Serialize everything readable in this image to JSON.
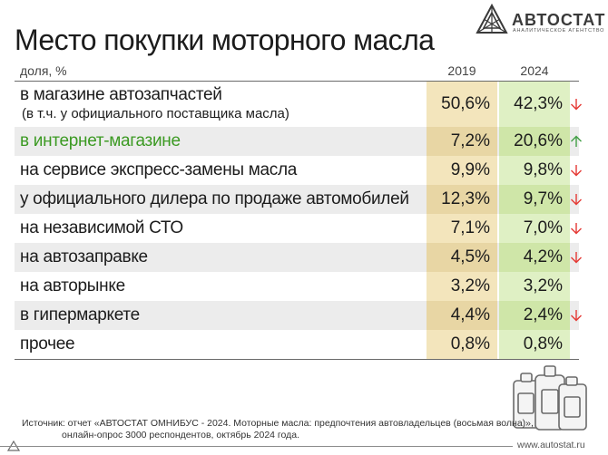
{
  "brand": {
    "name": "АВТОСТАТ",
    "tagline": "АНАЛИТИЧЕСКОЕ АГЕНТСТВО",
    "website": "www.autostat.ru"
  },
  "chart_data": {
    "type": "table",
    "title": "Место покупки моторного масла",
    "unit_label": "доля, %",
    "columns": [
      "2019",
      "2024"
    ],
    "rows": [
      {
        "label": "в магазине автозапчастей",
        "sublabel": "(в т.ч. у официального поставщика масла)",
        "v2019": "50,6%",
        "v2024": "42,3%",
        "value_2019": 50.6,
        "value_2024": 42.3,
        "trend": "down",
        "highlight": false
      },
      {
        "label": "в интернет-магазине",
        "v2019": "7,2%",
        "v2024": "20,6%",
        "value_2019": 7.2,
        "value_2024": 20.6,
        "trend": "up",
        "highlight": true
      },
      {
        "label": "на сервисе экспресс-замены масла",
        "v2019": "9,9%",
        "v2024": "9,8%",
        "value_2019": 9.9,
        "value_2024": 9.8,
        "trend": "down",
        "highlight": false
      },
      {
        "label": "у официального дилера по продаже автомобилей",
        "v2019": "12,3%",
        "v2024": "9,7%",
        "value_2019": 12.3,
        "value_2024": 9.7,
        "trend": "down",
        "highlight": false
      },
      {
        "label": "на независимой СТО",
        "v2019": "7,1%",
        "v2024": "7,0%",
        "value_2019": 7.1,
        "value_2024": 7.0,
        "trend": "down",
        "highlight": false
      },
      {
        "label": "на автозаправке",
        "v2019": "4,5%",
        "v2024": "4,2%",
        "value_2019": 4.5,
        "value_2024": 4.2,
        "trend": "down",
        "highlight": false
      },
      {
        "label": "на авторынке",
        "v2019": "3,2%",
        "v2024": "3,2%",
        "value_2019": 3.2,
        "value_2024": 3.2,
        "trend": "none",
        "highlight": false
      },
      {
        "label": "в гипермаркете",
        "v2019": "4,4%",
        "v2024": "2,4%",
        "value_2019": 4.4,
        "value_2024": 2.4,
        "trend": "down",
        "highlight": false
      },
      {
        "label": "прочее",
        "v2019": "0,8%",
        "v2024": "0,8%",
        "value_2019": 0.8,
        "value_2024": 0.8,
        "trend": "none",
        "highlight": false
      }
    ]
  },
  "colors": {
    "trend_down": "#e53935",
    "trend_up": "#43a047",
    "highlight_text": "#3c9a23",
    "col_2019_bg": "#f3e5bc",
    "col_2024_bg": "#dff0c4"
  },
  "icons": {
    "trend_down": "arrow-down-icon",
    "trend_up": "arrow-up-icon",
    "decoration": "oil-canister-icon"
  },
  "source": {
    "line1": "Источник: отчет «АВТОСТАТ ОМНИБУС - 2024. Моторные масла: предпочтения автовладельцев (восьмая волна)»,",
    "line2": "онлайн-опрос 3000 респондентов, октябрь 2024 года."
  }
}
